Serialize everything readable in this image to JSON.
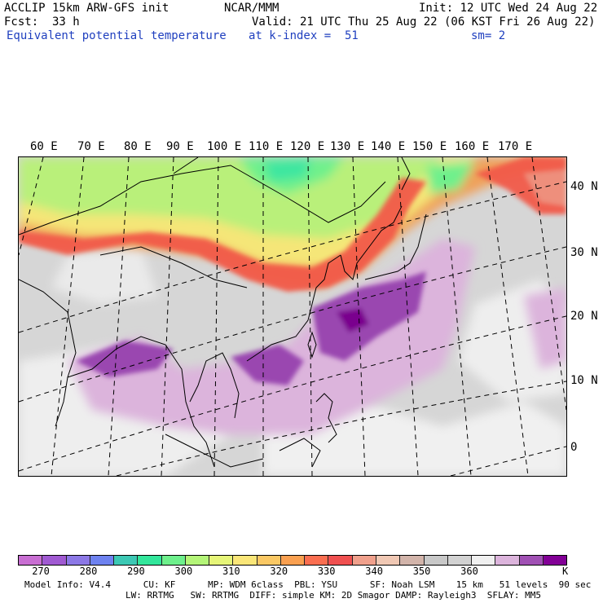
{
  "header": {
    "model": "ACCLIP 15km ARW-GFS init",
    "org": "NCAR/MMM",
    "init": "Init: 12 UTC Wed 24 Aug 22",
    "fcst_label": "Fcst:",
    "fcst_value": "33 h",
    "valid": "Valid: 21 UTC Thu 25 Aug 22 (06 KST Fri 26 Aug 22)",
    "field": "Equivalent potential temperature",
    "level": "at k-index =  51",
    "smoothing": "sm= 2"
  },
  "map": {
    "lon_labels": [
      "60 E",
      "70 E",
      "80 E",
      "90 E",
      "100 E",
      "110 E",
      "120 E",
      "130 E",
      "140 E",
      "150 E",
      "160 E",
      "170 E"
    ],
    "lat_labels": [
      "40 N",
      "30 N",
      "20 N",
      "10 N",
      "0"
    ],
    "region": "East Asia / Western Pacific"
  },
  "colorbar": {
    "colors": [
      "#c86ed2",
      "#a05ad2",
      "#8c78e6",
      "#6e82f0",
      "#3cc8b4",
      "#32e69b",
      "#6ef08c",
      "#b4f578",
      "#e6f578",
      "#fae678",
      "#fac864",
      "#faa050",
      "#fa6e50",
      "#f05050",
      "#f0a08c",
      "#f0c8b4",
      "#d2b4aa",
      "#c8c8c8",
      "#d2d2d2",
      "#f0f0f0",
      "#dcb4dc",
      "#a050b4",
      "#820096"
    ],
    "ticks": [
      "270",
      "280",
      "290",
      "300",
      "310",
      "320",
      "330",
      "340",
      "350",
      "360"
    ],
    "unit": "K"
  },
  "footer": {
    "line1": "Model Info: V4.4      CU: KF      MP: WDM 6class  PBL: YSU      SF: Noah LSM    15 km   51 levels  90 sec",
    "line2": "LW: RRTMG   SW: RRTMG  DIFF: simple KM: 2D Smagor DAMP: Rayleigh3  SFLAY: MM5"
  }
}
